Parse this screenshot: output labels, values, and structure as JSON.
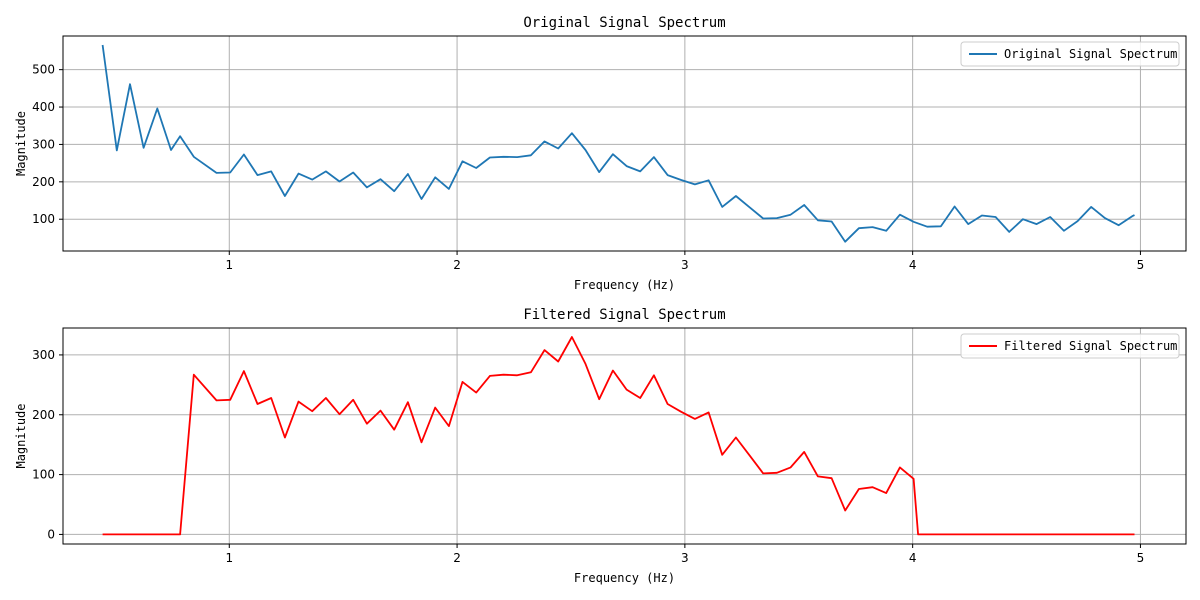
{
  "chart_data": [
    {
      "type": "line",
      "title": "Original Signal Spectrum",
      "xlabel": "Frequency (Hz)",
      "ylabel": "Magnitude",
      "xlim": [
        0.27,
        5.2
      ],
      "ylim": [
        15,
        590
      ],
      "xticks": [
        1,
        2,
        3,
        4,
        5
      ],
      "yticks": [
        100,
        200,
        300,
        400,
        500
      ],
      "grid": true,
      "legend_position": "top-right",
      "series": [
        {
          "name": "Original Signal Spectrum",
          "color": "#1f77b4",
          "x": [
            0.444,
            0.506,
            0.564,
            0.624,
            0.684,
            0.744,
            0.784,
            0.844,
            0.944,
            1.004,
            1.064,
            1.124,
            1.184,
            1.244,
            1.304,
            1.364,
            1.424,
            1.484,
            1.544,
            1.604,
            1.664,
            1.724,
            1.784,
            1.844,
            1.904,
            1.964,
            2.024,
            2.084,
            2.144,
            2.204,
            2.264,
            2.324,
            2.384,
            2.444,
            2.504,
            2.564,
            2.624,
            2.684,
            2.744,
            2.804,
            2.864,
            2.924,
            2.984,
            3.044,
            3.104,
            3.164,
            3.224,
            3.284,
            3.344,
            3.404,
            3.464,
            3.524,
            3.584,
            3.644,
            3.704,
            3.764,
            3.824,
            3.884,
            3.944,
            4.004,
            4.064,
            4.124,
            4.184,
            4.244,
            4.304,
            4.364,
            4.424,
            4.484,
            4.544,
            4.604,
            4.664,
            4.724,
            4.784,
            4.844,
            4.904,
            4.964,
            4.974
          ],
          "y": [
            566,
            284,
            461,
            291,
            396,
            285,
            322,
            267,
            224,
            225,
            273,
            218,
            228,
            162,
            222,
            206,
            228,
            201,
            225,
            185,
            207,
            175,
            221,
            154,
            212,
            181,
            255,
            237,
            265,
            267,
            266,
            271,
            308,
            289,
            330,
            285,
            226,
            274,
            242,
            228,
            266,
            218,
            205,
            193,
            204,
            133,
            162,
            132,
            102,
            103,
            112,
            138,
            97,
            94,
            40,
            76,
            79,
            69,
            112,
            93,
            80,
            81,
            134,
            87,
            110,
            106,
            66,
            100,
            87,
            106,
            69,
            95,
            133,
            103,
            84,
            108,
            111
          ]
        }
      ]
    },
    {
      "type": "line",
      "title": "Filtered Signal Spectrum",
      "xlabel": "Frequency (Hz)",
      "ylabel": "Magnitude",
      "xlim": [
        0.27,
        5.2
      ],
      "ylim": [
        -16,
        345
      ],
      "xticks": [
        1,
        2,
        3,
        4,
        5
      ],
      "yticks": [
        0,
        100,
        200,
        300
      ],
      "grid": true,
      "legend_position": "top-right",
      "series": [
        {
          "name": "Filtered Signal Spectrum",
          "color": "#ff0000",
          "x": [
            0.444,
            0.764,
            0.784,
            0.844,
            0.944,
            1.004,
            1.064,
            1.124,
            1.184,
            1.244,
            1.304,
            1.364,
            1.424,
            1.484,
            1.544,
            1.604,
            1.664,
            1.724,
            1.784,
            1.844,
            1.904,
            1.964,
            2.024,
            2.084,
            2.144,
            2.204,
            2.264,
            2.324,
            2.384,
            2.444,
            2.504,
            2.564,
            2.624,
            2.684,
            2.744,
            2.804,
            2.864,
            2.924,
            2.984,
            3.044,
            3.104,
            3.164,
            3.224,
            3.284,
            3.344,
            3.404,
            3.464,
            3.524,
            3.584,
            3.644,
            3.704,
            3.764,
            3.824,
            3.884,
            3.944,
            4.004,
            4.024,
            4.064,
            4.974
          ],
          "y": [
            0,
            0,
            0,
            267,
            224,
            225,
            273,
            218,
            228,
            162,
            222,
            206,
            228,
            201,
            225,
            185,
            207,
            175,
            221,
            154,
            212,
            181,
            255,
            237,
            265,
            267,
            266,
            271,
            308,
            289,
            330,
            285,
            226,
            274,
            242,
            228,
            266,
            218,
            205,
            193,
            204,
            133,
            162,
            132,
            102,
            103,
            112,
            138,
            97,
            94,
            40,
            76,
            79,
            69,
            112,
            93,
            0,
            0,
            0
          ]
        }
      ]
    }
  ]
}
